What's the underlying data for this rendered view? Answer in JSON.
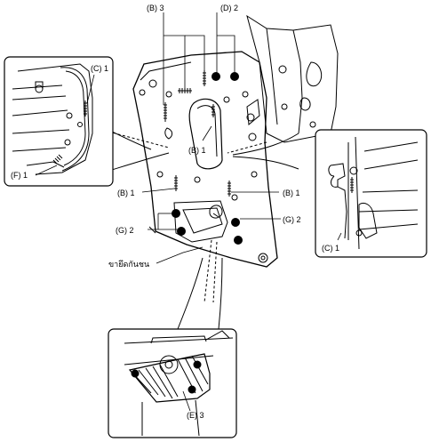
{
  "labels": {
    "b3": "(B) 3",
    "d2": "(D) 2",
    "c1_left": "(C) 1",
    "f1": "(F) 1",
    "b1_center": "(B) 1",
    "b1_left": "(B) 1",
    "b1_right": "(B) 1",
    "g2_left": "(G) 2",
    "g2_right": "(G) 2",
    "c1_right": "(C) 1",
    "bracket": "ขายึดกันชน",
    "e3": "(E) 3"
  },
  "colors": {
    "line": "#000000",
    "background": "#ffffff"
  }
}
